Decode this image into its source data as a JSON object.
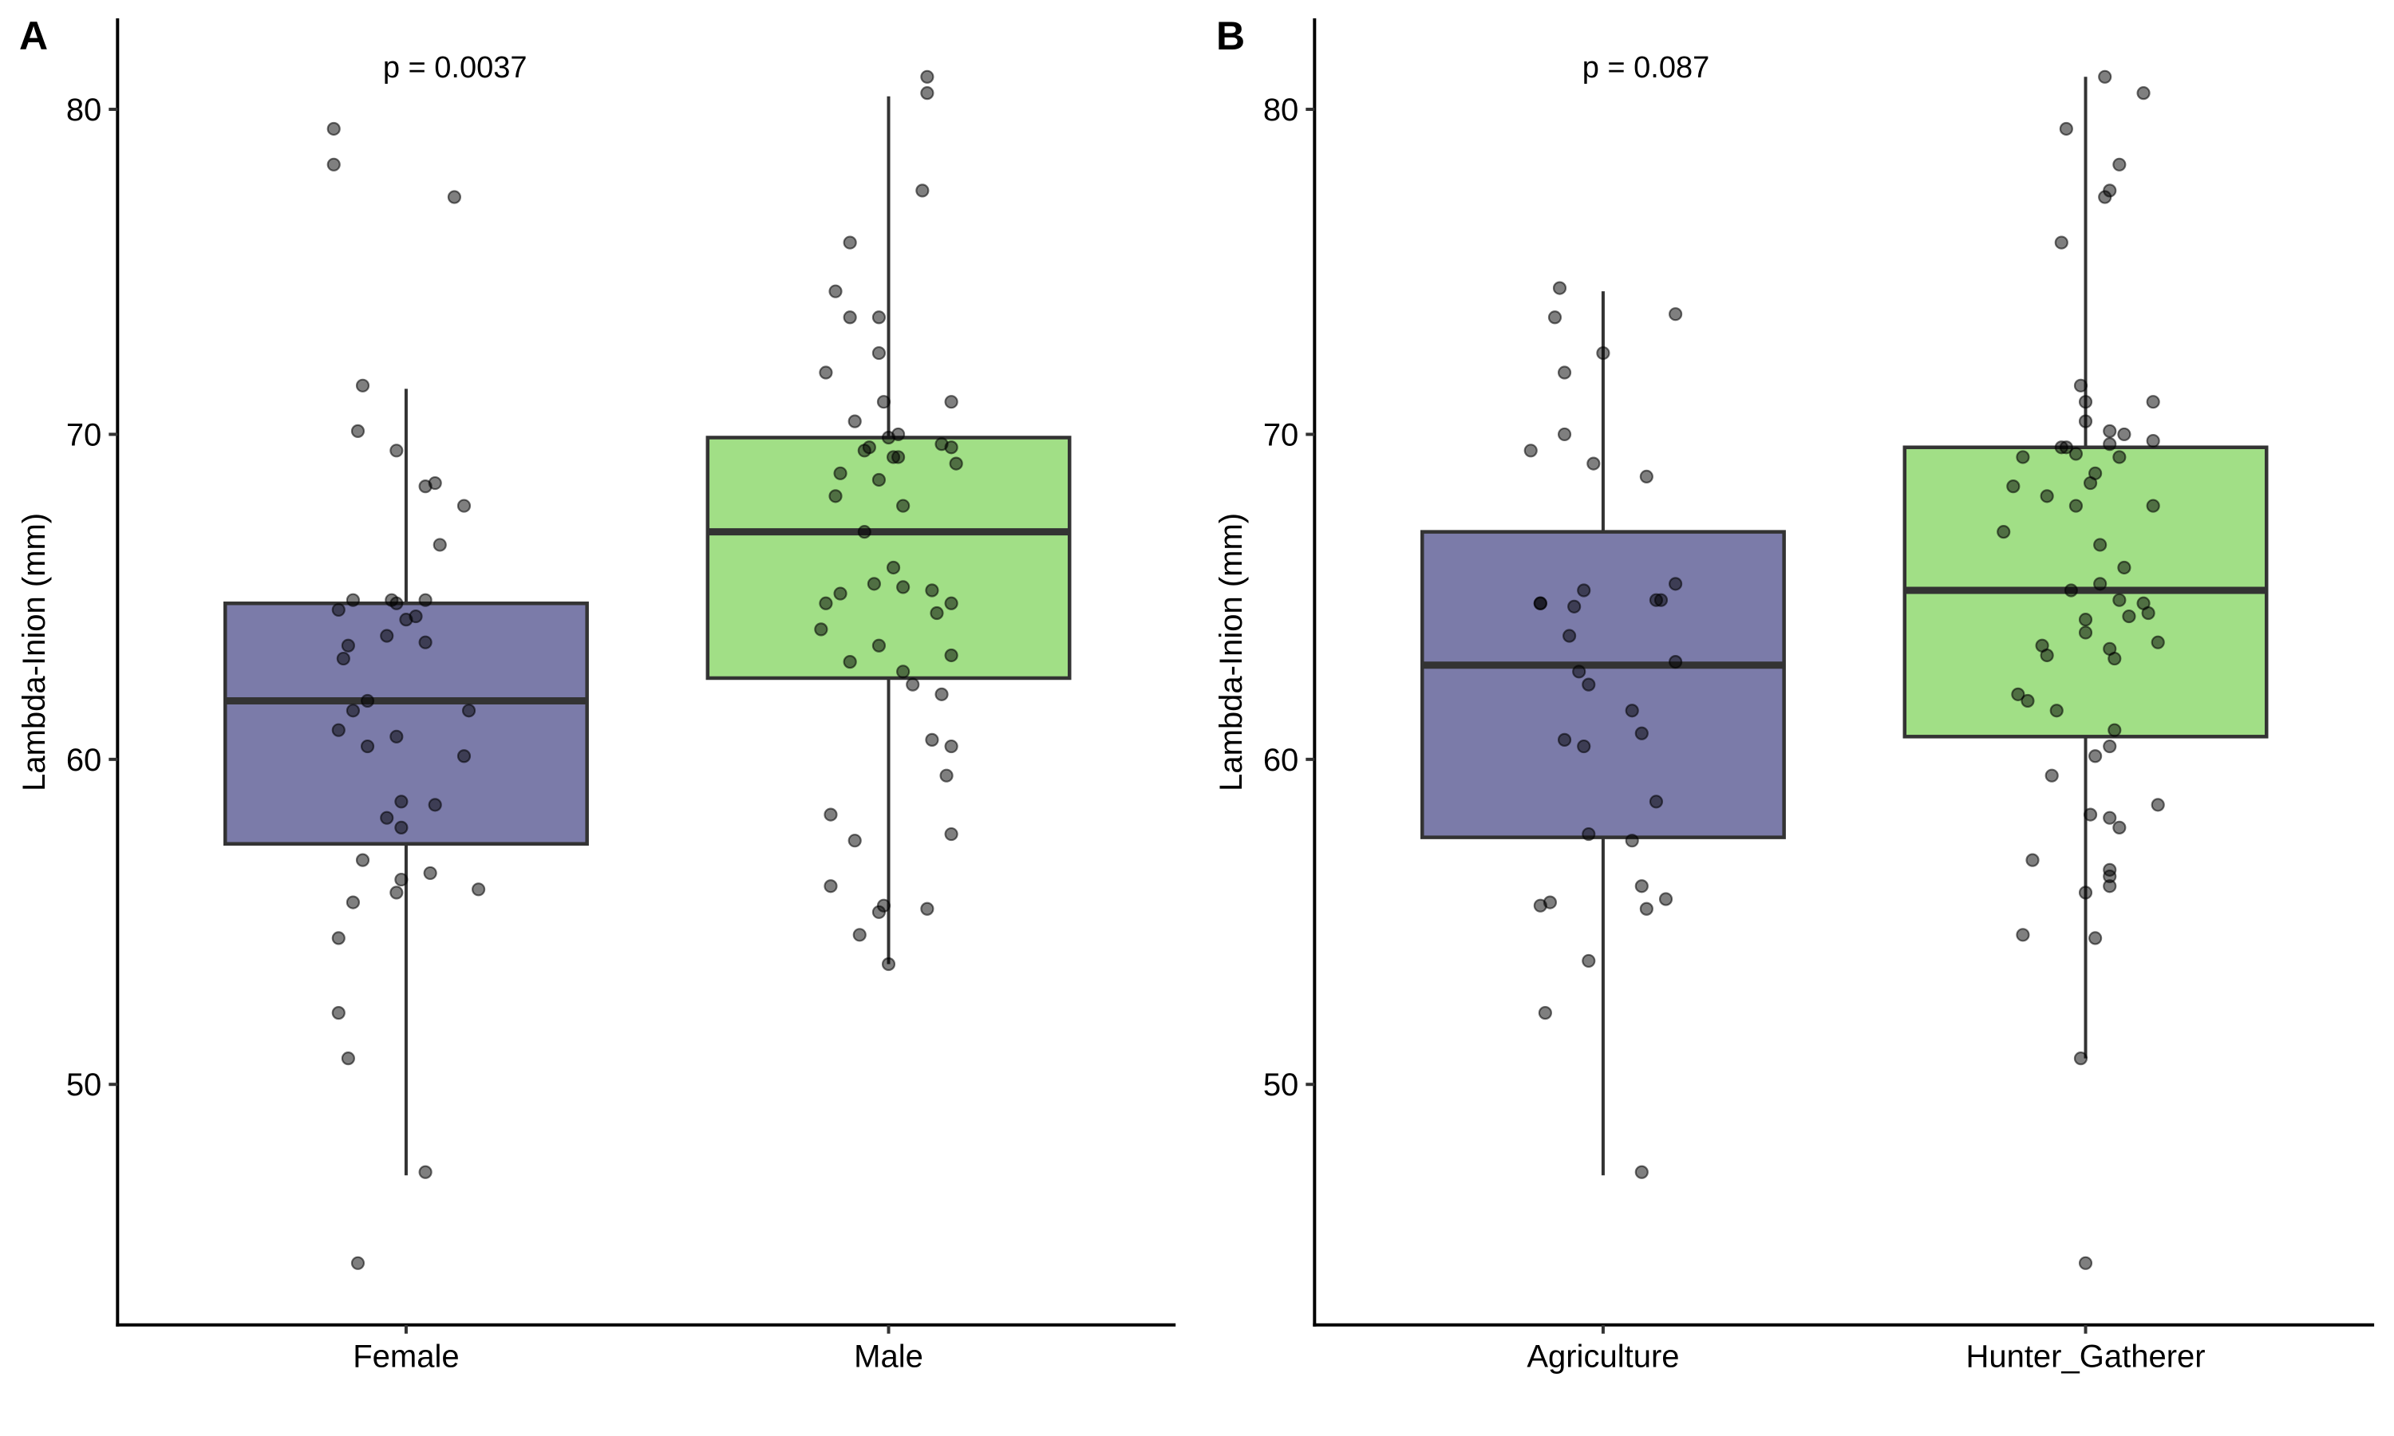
{
  "figure": {
    "panels": [
      "A",
      "B"
    ]
  },
  "chart_data": [
    {
      "type": "box",
      "panel_label": "A",
      "annotation": "p = 0.0037",
      "title": "",
      "xlabel": "",
      "ylabel": "Lambda-Inion (mm)",
      "ylim": [
        42.6,
        82.8
      ],
      "yticks": [
        50,
        60,
        70,
        80
      ],
      "grid": false,
      "categories": [
        "Female",
        "Male"
      ],
      "colors": [
        "#7b7ba9",
        "#a1df86"
      ],
      "boxes": [
        {
          "category": "Female",
          "whisker_low": 47.2,
          "q1": 57.4,
          "median": 61.8,
          "q3": 64.8,
          "whisker_high": 71.4
        },
        {
          "category": "Male",
          "whisker_low": 53.7,
          "q1": 62.5,
          "median": 67.0,
          "q3": 69.9,
          "whisker_high": 80.4
        }
      ],
      "points": [
        {
          "category": "Female",
          "values": [
            79.4,
            78.3,
            77.3,
            71.5,
            70.1,
            69.5,
            68.5,
            68.4,
            67.8,
            66.6,
            64.9,
            64.9,
            64.8,
            64.9,
            64.6,
            64.4,
            64.3,
            63.8,
            63.6,
            63.5,
            63.1,
            61.8,
            61.5,
            61.5,
            60.9,
            60.7,
            60.4,
            60.1,
            58.7,
            58.6,
            58.2,
            57.9,
            56.9,
            56.5,
            56.3,
            56.0,
            55.9,
            55.6,
            54.5,
            52.2,
            50.8,
            47.3,
            44.5
          ],
          "jitter": [
            -0.15,
            -0.15,
            0.1,
            -0.09,
            -0.1,
            -0.02,
            0.06,
            0.04,
            0.12,
            0.07,
            -0.11,
            -0.03,
            -0.02,
            0.04,
            -0.14,
            0.02,
            0.0,
            -0.04,
            0.04,
            -0.12,
            -0.13,
            -0.08,
            -0.11,
            0.13,
            -0.14,
            -0.02,
            -0.08,
            0.12,
            -0.01,
            0.06,
            -0.04,
            -0.01,
            -0.09,
            0.05,
            -0.01,
            0.15,
            -0.02,
            -0.11,
            -0.14,
            -0.14,
            -0.12,
            0.04,
            -0.1
          ]
        },
        {
          "category": "Male",
          "values": [
            81.0,
            80.5,
            77.5,
            75.9,
            74.4,
            73.6,
            73.6,
            72.5,
            71.9,
            71.0,
            71.0,
            70.4,
            70.0,
            69.9,
            69.7,
            69.6,
            69.6,
            69.5,
            69.3,
            69.3,
            69.1,
            68.8,
            68.6,
            68.1,
            67.8,
            67.0,
            65.9,
            65.4,
            65.3,
            65.2,
            65.1,
            64.8,
            64.8,
            64.5,
            64.0,
            63.5,
            63.2,
            63.0,
            62.7,
            62.3,
            62.0,
            60.6,
            60.4,
            59.5,
            58.3,
            57.7,
            57.5,
            56.1,
            55.5,
            55.4,
            55.3,
            54.6,
            53.7
          ],
          "jitter": [
            0.08,
            0.08,
            0.07,
            -0.08,
            -0.11,
            -0.08,
            -0.02,
            -0.02,
            -0.13,
            -0.01,
            0.13,
            -0.07,
            0.02,
            0.0,
            0.11,
            0.13,
            -0.04,
            -0.05,
            0.01,
            0.02,
            0.14,
            -0.1,
            -0.02,
            -0.11,
            0.03,
            -0.05,
            0.01,
            -0.03,
            0.03,
            0.09,
            -0.1,
            -0.13,
            0.13,
            0.1,
            -0.14,
            -0.02,
            0.13,
            -0.08,
            0.03,
            0.05,
            0.11,
            0.09,
            0.13,
            0.12,
            -0.12,
            0.13,
            -0.07,
            -0.12,
            -0.01,
            0.08,
            -0.02,
            -0.06,
            0.0
          ]
        }
      ]
    },
    {
      "type": "box",
      "panel_label": "B",
      "annotation": "p = 0.087",
      "title": "",
      "xlabel": "",
      "ylabel": "Lambda-Inion (mm)",
      "ylim": [
        42.6,
        82.8
      ],
      "yticks": [
        50,
        60,
        70,
        80
      ],
      "grid": false,
      "categories": [
        "Agriculture",
        "Hunter_Gatherer"
      ],
      "colors": [
        "#7b7ba9",
        "#a1df86"
      ],
      "boxes": [
        {
          "category": "Agriculture",
          "whisker_low": 47.2,
          "q1": 57.6,
          "median": 62.9,
          "q3": 67.0,
          "whisker_high": 74.4
        },
        {
          "category": "Hunter_Gatherer",
          "whisker_low": 50.8,
          "q1": 60.7,
          "median": 65.2,
          "q3": 69.6,
          "whisker_high": 81.0
        }
      ],
      "points": [
        {
          "category": "Agriculture",
          "values": [
            74.5,
            73.6,
            73.7,
            72.5,
            71.9,
            70.0,
            69.5,
            69.1,
            68.7,
            65.4,
            65.2,
            64.9,
            64.9,
            64.8,
            64.8,
            64.7,
            63.8,
            63.0,
            62.7,
            62.3,
            61.5,
            60.8,
            60.6,
            60.4,
            58.7,
            57.7,
            57.5,
            56.1,
            55.7,
            55.6,
            55.5,
            55.4,
            53.8,
            52.2,
            47.3
          ],
          "jitter": [
            -0.09,
            -0.1,
            0.15,
            0.0,
            -0.08,
            -0.08,
            -0.15,
            -0.02,
            0.09,
            0.15,
            -0.04,
            0.11,
            0.12,
            -0.13,
            -0.13,
            -0.06,
            -0.07,
            0.15,
            -0.05,
            -0.03,
            0.06,
            0.08,
            -0.08,
            -0.04,
            0.11,
            -0.03,
            0.06,
            0.08,
            0.13,
            -0.11,
            -0.13,
            0.09,
            -0.03,
            -0.12,
            0.08
          ]
        },
        {
          "category": "Hunter_Gatherer",
          "values": [
            81.0,
            80.5,
            79.4,
            78.3,
            77.5,
            77.3,
            75.9,
            71.5,
            71.0,
            71.0,
            70.4,
            70.1,
            70.0,
            69.8,
            69.7,
            69.6,
            69.6,
            69.4,
            69.3,
            69.3,
            68.8,
            68.5,
            68.4,
            68.1,
            67.8,
            67.8,
            67.0,
            66.6,
            65.9,
            65.4,
            65.2,
            64.9,
            64.8,
            64.5,
            64.4,
            64.3,
            63.9,
            63.6,
            63.5,
            63.4,
            63.2,
            63.1,
            62.0,
            61.8,
            61.5,
            60.9,
            60.4,
            60.1,
            59.5,
            58.6,
            58.3,
            58.2,
            57.9,
            56.9,
            56.6,
            56.4,
            56.1,
            55.9,
            54.6,
            54.5,
            50.8,
            44.5
          ],
          "jitter": [
            0.04,
            0.12,
            -0.04,
            0.07,
            0.05,
            0.04,
            -0.05,
            -0.01,
            0.0,
            0.14,
            -0.0,
            0.05,
            0.08,
            0.14,
            0.05,
            -0.05,
            -0.04,
            -0.02,
            0.07,
            -0.13,
            0.02,
            0.01,
            -0.15,
            -0.08,
            -0.02,
            0.14,
            -0.17,
            0.03,
            0.08,
            0.03,
            -0.03,
            0.07,
            0.12,
            0.13,
            0.09,
            0.0,
            0.0,
            0.15,
            -0.09,
            0.05,
            -0.08,
            0.06,
            -0.14,
            -0.12,
            -0.06,
            0.06,
            0.05,
            0.02,
            -0.07,
            0.15,
            0.01,
            0.05,
            0.07,
            -0.11,
            0.05,
            0.05,
            0.05,
            -0.0,
            -0.13,
            0.02,
            -0.01,
            -0.0
          ]
        }
      ]
    }
  ]
}
